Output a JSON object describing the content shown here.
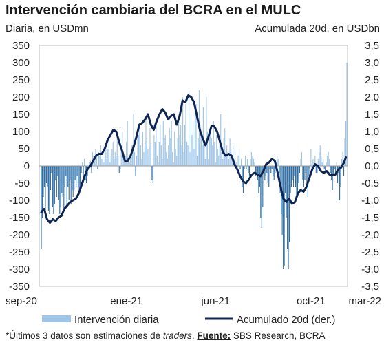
{
  "chart_data": {
    "type": "bar+line",
    "title": "Intervención cambiaria del BCRA en el MULC",
    "left_axis_label": "Diaria, en USDmn",
    "right_axis_label": "Acumulada 20d, en USDbn",
    "left_ylim": [
      -350,
      350
    ],
    "right_ylim": [
      -3.5,
      3.5
    ],
    "left_ticks": [
      "350",
      "300",
      "250",
      "200",
      "150",
      "100",
      "50",
      "0",
      "-50",
      "-100",
      "-150",
      "-200",
      "-250",
      "-300",
      "-350"
    ],
    "right_ticks": [
      "3,5",
      "3,0",
      "2,5",
      "2,0",
      "1,5",
      "1,0",
      "0,5",
      "0,0",
      "-0,5",
      "-1,0",
      "-1,5",
      "-2,0",
      "-2,5",
      "-3,0",
      "-3,5"
    ],
    "x_ticks": [
      "sep-20",
      "ene-21",
      "jun-21",
      "oct-21",
      "mar-22"
    ],
    "grid": false,
    "legend_position": "bottom",
    "colors": {
      "bars_positive": "#9ec4e6",
      "bars_negative": "#2f6fa6",
      "line": "#0e2452"
    },
    "series": [
      {
        "name": "Intervención diaria",
        "type": "bar",
        "values": [
          -240,
          -150,
          -90,
          -60,
          -150,
          -50,
          -60,
          -130,
          -140,
          -70,
          -20,
          -120,
          -140,
          -110,
          -40,
          -90,
          -30,
          -100,
          -140,
          -120,
          -80,
          -90,
          -130,
          -60,
          -30,
          -120,
          -60,
          -100,
          -40,
          -110,
          -70,
          -90,
          -70,
          -40,
          -60,
          -30,
          -60,
          -80,
          -70,
          -20,
          10,
          -50,
          20,
          -40,
          -50,
          -30,
          -10,
          10,
          15,
          -20,
          40,
          30,
          20,
          50,
          30,
          -10,
          40,
          30,
          60,
          20,
          30,
          10,
          40,
          60,
          20,
          50,
          80,
          10,
          30,
          50,
          70,
          20,
          40,
          30,
          90,
          30,
          -20,
          -10,
          60,
          100,
          40,
          20,
          30,
          70,
          130,
          20,
          10,
          30,
          60,
          60,
          150,
          40,
          -30,
          30,
          100,
          90,
          120,
          60,
          20,
          100,
          40,
          60,
          140,
          80,
          50,
          30,
          110,
          60,
          -40,
          -50,
          90,
          70,
          120,
          30,
          10,
          70,
          120,
          60,
          20,
          130,
          80,
          90,
          40,
          20,
          60,
          110,
          80,
          130,
          40,
          10,
          100,
          50,
          30,
          80,
          150,
          90,
          120,
          60,
          200,
          40,
          120,
          180,
          70,
          60,
          220,
          40,
          150,
          90,
          130,
          50,
          190,
          180,
          30,
          80,
          220,
          120,
          90,
          60,
          170,
          60,
          20,
          200,
          100,
          20,
          90,
          110,
          80,
          60,
          130,
          70,
          10,
          90,
          50,
          30,
          70,
          150,
          40,
          20,
          80,
          110,
          30,
          60,
          40,
          20,
          80,
          50,
          30,
          60,
          20,
          40,
          10,
          -20,
          30,
          50,
          -10,
          20,
          -60,
          -80,
          -10,
          30,
          -10,
          20,
          -20,
          -30,
          20,
          40,
          30,
          20,
          10,
          -30,
          -20,
          -40,
          -80,
          -60,
          -150,
          -180,
          -120,
          -20,
          -40,
          -30,
          -20,
          -50,
          -60,
          -10,
          -20,
          -10,
          -30,
          -40,
          -20,
          10,
          30,
          20,
          -20,
          -80,
          -140,
          -200,
          -300,
          -290,
          -80,
          -150,
          -240,
          -300,
          -220,
          -80,
          -60,
          -40,
          -60,
          -30,
          -60,
          -100,
          -90,
          -50,
          -20,
          20,
          40,
          -40,
          -60,
          -40,
          -20,
          -50,
          -90,
          -30,
          -10,
          50,
          -10,
          20,
          10,
          30,
          -20,
          -20,
          20,
          40,
          60,
          30,
          10,
          20,
          -10,
          -20,
          10,
          30,
          40,
          20,
          -20,
          -40,
          -70,
          -30,
          -10,
          -20,
          10,
          -50,
          -20,
          -100,
          -60,
          20,
          40,
          -30,
          80,
          130,
          300
        ]
      },
      {
        "name": "Acumulado 20d (der.)",
        "type": "line",
        "points": [
          [
            0,
            -1.35
          ],
          [
            3,
            -1.25
          ],
          [
            6,
            -1.55
          ],
          [
            9,
            -1.65
          ],
          [
            12,
            -1.55
          ],
          [
            15,
            -1.6
          ],
          [
            18,
            -1.5
          ],
          [
            21,
            -1.45
          ],
          [
            24,
            -1.25
          ],
          [
            27,
            -1.15
          ],
          [
            30,
            -1.05
          ],
          [
            33,
            -1.0
          ],
          [
            36,
            -0.95
          ],
          [
            39,
            -0.8
          ],
          [
            42,
            -0.55
          ],
          [
            45,
            -0.3
          ],
          [
            48,
            -0.1
          ],
          [
            51,
            0.0
          ],
          [
            54,
            0.15
          ],
          [
            57,
            0.3
          ],
          [
            60,
            0.35
          ],
          [
            63,
            0.35
          ],
          [
            66,
            0.5
          ],
          [
            69,
            0.75
          ],
          [
            72,
            0.9
          ],
          [
            75,
            1.05
          ],
          [
            78,
            1.0
          ],
          [
            81,
            0.7
          ],
          [
            84,
            0.45
          ],
          [
            87,
            0.15
          ],
          [
            90,
            0.15
          ],
          [
            93,
            0.3
          ],
          [
            96,
            0.55
          ],
          [
            99,
            0.85
          ],
          [
            102,
            1.2
          ],
          [
            105,
            1.25
          ],
          [
            108,
            1.35
          ],
          [
            111,
            1.5
          ],
          [
            114,
            1.2
          ],
          [
            117,
            1.05
          ],
          [
            120,
            1.3
          ],
          [
            123,
            1.5
          ],
          [
            126,
            1.65
          ],
          [
            129,
            1.55
          ],
          [
            132,
            1.35
          ],
          [
            135,
            1.45
          ],
          [
            138,
            1.5
          ],
          [
            141,
            1.2
          ],
          [
            144,
            1.45
          ],
          [
            147,
            1.9
          ],
          [
            150,
            1.85
          ],
          [
            153,
            2.05
          ],
          [
            156,
            2.0
          ],
          [
            159,
            1.85
          ],
          [
            162,
            1.45
          ],
          [
            165,
            1.05
          ],
          [
            168,
            0.8
          ],
          [
            171,
            0.6
          ],
          [
            174,
            0.85
          ],
          [
            177,
            1.15
          ],
          [
            180,
            1.15
          ],
          [
            183,
            1.0
          ],
          [
            186,
            0.7
          ],
          [
            189,
            0.4
          ],
          [
            192,
            0.3
          ],
          [
            195,
            0.35
          ],
          [
            198,
            0.3
          ],
          [
            201,
            0.05
          ],
          [
            204,
            -0.1
          ],
          [
            207,
            -0.3
          ],
          [
            210,
            -0.45
          ],
          [
            213,
            -0.5
          ],
          [
            216,
            -0.4
          ],
          [
            219,
            -0.25
          ],
          [
            222,
            -0.2
          ],
          [
            225,
            -0.25
          ],
          [
            228,
            -0.3
          ],
          [
            231,
            -0.15
          ],
          [
            234,
            0.05
          ],
          [
            237,
            0.1
          ],
          [
            240,
            0.2
          ],
          [
            243,
            0.15
          ],
          [
            246,
            -0.2
          ],
          [
            249,
            -0.6
          ],
          [
            252,
            -0.95
          ],
          [
            255,
            -1.05
          ],
          [
            258,
            -0.95
          ],
          [
            261,
            -1.1
          ],
          [
            264,
            -1.05
          ],
          [
            267,
            -0.8
          ],
          [
            270,
            -0.7
          ],
          [
            273,
            -0.75
          ],
          [
            276,
            -0.6
          ],
          [
            279,
            -0.35
          ],
          [
            282,
            -0.1
          ],
          [
            285,
            0.05
          ],
          [
            288,
            0.0
          ],
          [
            291,
            -0.15
          ],
          [
            294,
            -0.2
          ],
          [
            297,
            -0.15
          ],
          [
            300,
            -0.25
          ],
          [
            303,
            -0.25
          ],
          [
            306,
            -0.25
          ],
          [
            309,
            -0.1
          ],
          [
            312,
            -0.05
          ],
          [
            315,
            0.1
          ],
          [
            317,
            0.25
          ]
        ],
        "x_domain": [
          0,
          318
        ]
      }
    ],
    "x_tick_index": [
      0,
      83,
      170,
      263,
      318
    ]
  },
  "legend": {
    "bars_label": "Intervención diaria",
    "line_label": "Acumulado 20d (der.)"
  },
  "footnote": {
    "prefix": "*Últimos 3 datos son estimaciones de ",
    "italic": "traders",
    "middle": ". ",
    "bold": "Fuente:",
    "suffix": " SBS Research, BCRA"
  }
}
